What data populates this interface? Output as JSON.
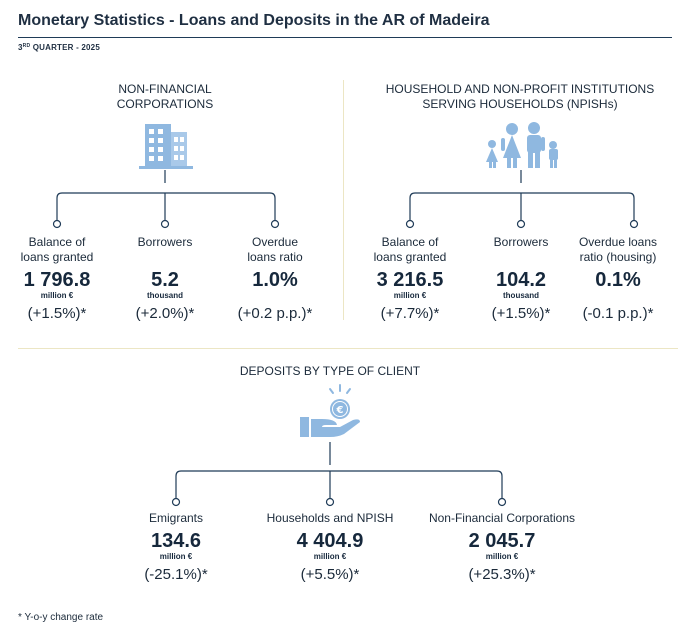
{
  "header": {
    "title": "Monetary Statistics - Loans and Deposits in the AR of Madeira",
    "subtitle_sup": "3RD",
    "subtitle_rest": " QUARTER - 2025"
  },
  "colors": {
    "icon_blue": "#8fb8e0",
    "line_blue": "#1f3b57",
    "separator": "#ece6c4"
  },
  "nfc": {
    "title_line1": "NON-FINANCIAL",
    "title_line2": "CORPORATIONS",
    "icon": "office-building-icon",
    "metrics": [
      {
        "label_line1": "Balance of",
        "label_line2": "loans granted",
        "value": "1 796.8",
        "unit": "million €",
        "change": "(+1.5%)*"
      },
      {
        "label_line1": "Borrowers",
        "label_line2": "",
        "value": "5.2",
        "unit": "thousand",
        "change": "(+2.0%)*"
      },
      {
        "label_line1": "Overdue",
        "label_line2": "loans ratio",
        "value": "1.0%",
        "unit": "",
        "change": "(+0.2 p.p.)*"
      }
    ]
  },
  "households": {
    "title_line1": "HOUSEHOLD AND NON-PROFIT INSTITUTIONS",
    "title_line2": "SERVING HOUSEHOLDS (NPISHs)",
    "icon": "family-icon",
    "metrics": [
      {
        "label_line1": "Balance of",
        "label_line2": "loans granted",
        "value": "3 216.5",
        "unit": "million €",
        "change": "(+7.7%)*"
      },
      {
        "label_line1": "Borrowers",
        "label_line2": "",
        "value": "104.2",
        "unit": "thousand",
        "change": "(+1.5%)*"
      },
      {
        "label_line1": "Overdue loans",
        "label_line2": "ratio (housing)",
        "value": "0.1%",
        "unit": "",
        "change": "(-0.1 p.p.)*"
      }
    ]
  },
  "deposits": {
    "title": "DEPOSITS BY TYPE OF CLIENT",
    "icon": "hand-euro-coin-icon",
    "metrics": [
      {
        "label": "Emigrants",
        "value": "134.6",
        "unit": "million €",
        "change": "(-25.1%)*"
      },
      {
        "label": "Households and NPISH",
        "value": "4 404.9",
        "unit": "million €",
        "change": "(+5.5%)*"
      },
      {
        "label": "Non-Financial Corporations",
        "value": "2 045.7",
        "unit": "million €",
        "change": "(+25.3%)*"
      }
    ]
  },
  "footnote": "* Y-o-y change rate"
}
